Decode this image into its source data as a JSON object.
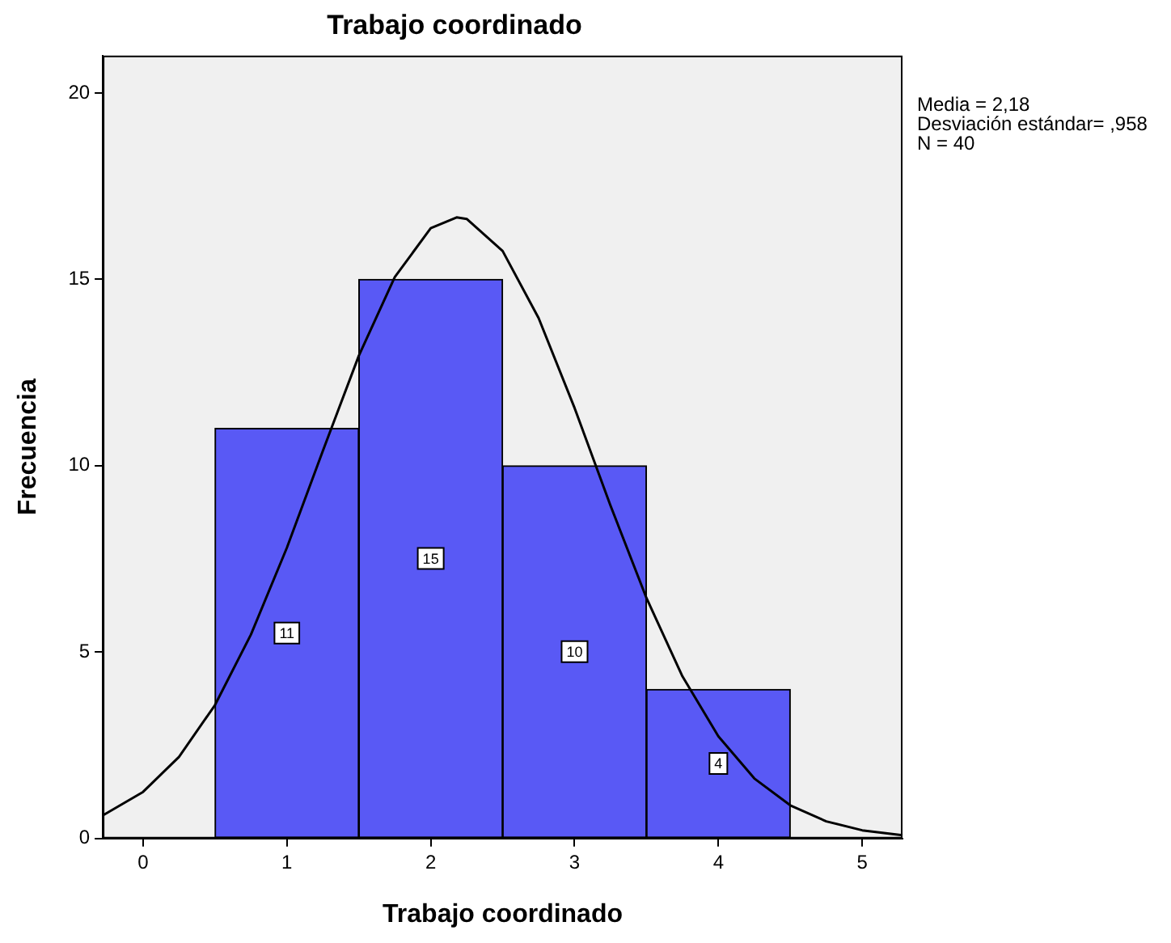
{
  "chart_data": {
    "type": "histogram",
    "title": "Trabajo coordinado",
    "xlabel": "Trabajo coordinado",
    "ylabel": "Frecuencia",
    "bins": [
      0.5,
      1.5,
      2.5,
      3.5,
      4.5
    ],
    "values": [
      11,
      15,
      10,
      4
    ],
    "color": "#5959f5",
    "value_labels": [
      "11",
      "15",
      "10",
      "4"
    ],
    "series": [
      {
        "type": "line",
        "color": "#000000",
        "x": [
          -0.28,
          0,
          0.25,
          0.5,
          0.75,
          1,
          1.25,
          1.5,
          1.75,
          2,
          2.18,
          2.25,
          2.5,
          2.75,
          3,
          3.25,
          3.5,
          3.75,
          4,
          4.25,
          4.5,
          4.75,
          5,
          5.28
        ],
        "values": [
          0.62,
          1.25,
          2.19,
          3.58,
          5.47,
          7.8,
          10.4,
          12.95,
          15.06,
          16.37,
          16.66,
          16.62,
          15.76,
          13.96,
          11.55,
          8.93,
          6.45,
          4.35,
          2.74,
          1.61,
          0.89,
          0.46,
          0.22,
          0.09
        ]
      }
    ],
    "xlim": [
      -0.28,
      5.28
    ],
    "xticks": [
      0,
      1,
      2,
      3,
      4,
      5
    ],
    "ylim": [
      0,
      21
    ],
    "yticks": [
      0,
      5,
      10,
      15,
      20
    ],
    "grid": false,
    "legend": false,
    "annotations": [
      "Media = 2,18",
      "Desviación estándar= ,958",
      "N = 40"
    ]
  }
}
